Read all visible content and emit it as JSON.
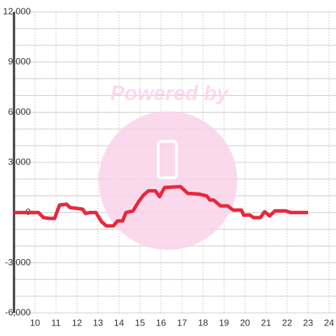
{
  "chart_data": {
    "type": "line",
    "watermark": "Powered by",
    "x": [
      9.0,
      10.17,
      10.4,
      10.67,
      10.93,
      11.17,
      11.5,
      11.67,
      12.0,
      12.27,
      12.4,
      12.6,
      12.9,
      13.17,
      13.4,
      13.73,
      13.93,
      14.17,
      14.33,
      14.67,
      14.93,
      15.17,
      15.4,
      15.73,
      15.93,
      16.17,
      16.93,
      17.27,
      17.83,
      18.17,
      18.33,
      18.5,
      18.83,
      19.17,
      19.43,
      19.83,
      19.93,
      20.23,
      20.4,
      20.73,
      20.93,
      21.17,
      21.43,
      21.93,
      22.17,
      23.0
    ],
    "series": [
      {
        "color": "#e8283c",
        "values": [
          0,
          0,
          -300,
          -350,
          -350,
          450,
          500,
          300,
          250,
          200,
          -50,
          0,
          0,
          -550,
          -800,
          -800,
          -500,
          -500,
          0,
          100,
          650,
          1050,
          1300,
          1300,
          950,
          1500,
          1550,
          1150,
          1100,
          1000,
          750,
          750,
          400,
          400,
          150,
          150,
          -150,
          -150,
          -300,
          -300,
          50,
          -200,
          100,
          100,
          0,
          0
        ]
      }
    ],
    "xlim": [
      9,
      24.33
    ],
    "xticks": [
      10,
      11,
      12,
      13,
      14,
      15,
      16,
      17,
      18,
      19,
      20,
      21,
      22,
      23,
      24
    ],
    "ylim": [
      -6000,
      12000
    ],
    "yticks": [
      {
        "value": -6000,
        "label": "-6,000"
      },
      {
        "value": -3000,
        "label": "-3,000"
      },
      0,
      {
        "value": 3000,
        "label": "3,000"
      },
      {
        "value": 6000,
        "label": "6,000"
      },
      {
        "value": 9000,
        "label": "9,000"
      },
      {
        "value": 12000,
        "label": "12,000"
      }
    ],
    "y_minor_ticks": [
      -5000,
      -4000,
      -2000,
      -1000,
      1000,
      2000,
      4000,
      5000,
      7000,
      8000,
      10000,
      11000
    ],
    "grid": true
  }
}
